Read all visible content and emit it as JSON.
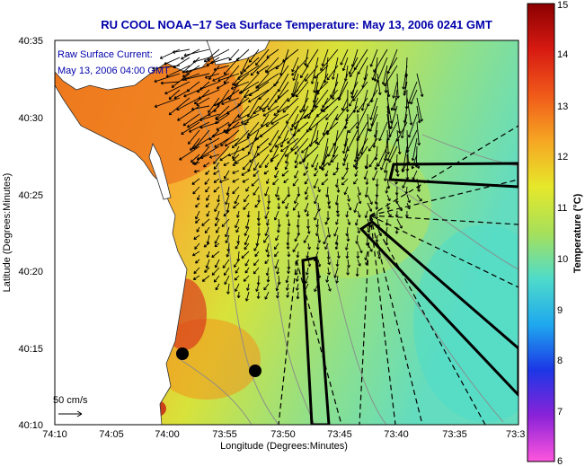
{
  "title": "RU COOL  NOAA−17  Sea Surface Temperature:  May 13, 2006 0241 GMT",
  "current_label": "Raw Surface Current:",
  "current_time": "May 13, 2006 04:00 GMT",
  "scale_label": "50 cm/s",
  "xlabel": "Longitude (Degrees:Minutes)",
  "ylabel": "Latitude (Degrees:Minutes)",
  "x_ticks": [
    "74:10",
    "74:05",
    "74:00",
    "73:55",
    "73:50",
    "73:45",
    "73:40",
    "73:35",
    "73:3"
  ],
  "y_ticks": [
    "40:35",
    "40:30",
    "40:25",
    "40:20",
    "40:15",
    "40:10"
  ],
  "colorbar": {
    "label": "Temperature (°C)",
    "ticks": [
      "15",
      "14",
      "13",
      "12",
      "11",
      "10",
      "9",
      "8",
      "7",
      "6"
    ],
    "min": 6,
    "max": 15
  },
  "colors": {
    "title": "#0000aa",
    "land": "#ffffff",
    "axis": "#000000"
  }
}
